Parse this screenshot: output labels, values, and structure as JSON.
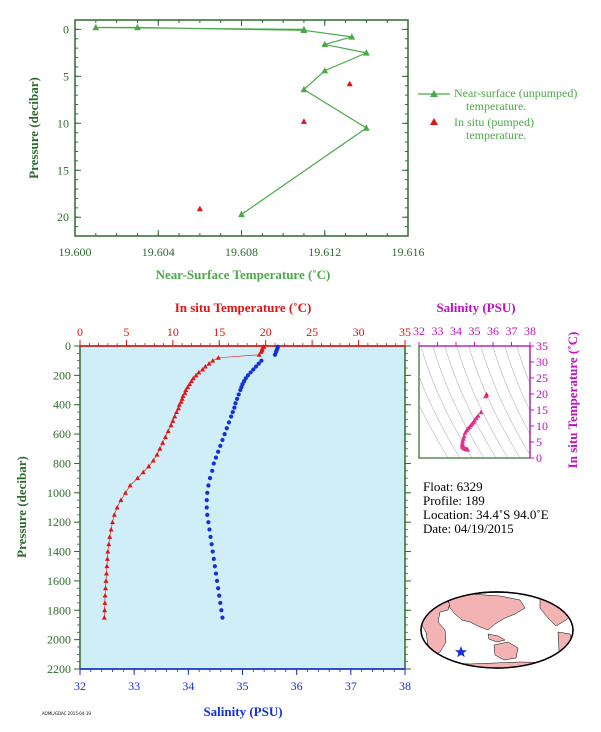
{
  "colors": {
    "green": "#4aaa4a",
    "axis_green": "#2f6b2f",
    "red": "#e01414",
    "blue": "#1530d8",
    "magenta": "#c010c0",
    "panel_bg": "#cfeef8",
    "land": "#f4b3b3"
  },
  "top_chart": {
    "type": "line",
    "ylabel": "Pressure (decibar)",
    "xlabel": "Near-Surface Temperature (˚C)",
    "xlim": [
      19.6,
      19.616
    ],
    "ylim": [
      22,
      -1
    ],
    "x_ticks": [
      "19.600",
      "19.604",
      "19.608",
      "19.612",
      "19.616"
    ],
    "y_ticks": [
      "0",
      "5",
      "10",
      "15",
      "20"
    ],
    "legend": {
      "line_label_1": "Near-surface (unpumped)",
      "line_label_2": "temperature.",
      "marker_label_1": "In situ (pumped)",
      "marker_label_2": "temperature."
    }
  },
  "main_chart": {
    "top_axis_label": "In situ Temperature (˚C)",
    "bottom_axis_label": "Salinity (PSU)",
    "ylabel": "Pressure (decibar)",
    "temp_ticks": [
      "0",
      "5",
      "10",
      "15",
      "20",
      "25",
      "30",
      "35"
    ],
    "sal_ticks": [
      "32",
      "33",
      "34",
      "35",
      "36",
      "37",
      "38"
    ],
    "p_ticks": [
      "0",
      "200",
      "400",
      "600",
      "800",
      "1000",
      "1200",
      "1400",
      "1600",
      "1800",
      "2000",
      "2200"
    ],
    "footer_code": "AOML/GDAC 2015-04-19"
  },
  "ts_chart": {
    "title": "Salinity (PSU)",
    "ylabel": "In situ Temperature (˚C)",
    "sal_ticks": [
      "32",
      "33",
      "34",
      "35",
      "36",
      "37",
      "38"
    ],
    "t_ticks": [
      "0",
      "5",
      "10",
      "15",
      "20",
      "25",
      "30",
      "35"
    ]
  },
  "info": {
    "float_line": "Float:  6329",
    "profile_line": "Profile:  189",
    "location_line": "Location:  34.4˚S  94.0˚E",
    "date_line": "Date:  04/19/2015"
  },
  "chart_data": [
    {
      "type": "line",
      "title": "",
      "xlabel": "Near-Surface Temperature (˚C)",
      "ylabel": "Pressure (decibar)",
      "xlim": [
        19.6,
        19.616
      ],
      "ylim": [
        22,
        -1
      ],
      "series": [
        {
          "name": "Near-surface (unpumped) temperature.",
          "points": [
            [
              19.611,
              0.0
            ],
            [
              19.601,
              -0.2
            ],
            [
              19.603,
              -0.2
            ],
            [
              19.611,
              0.1
            ],
            [
              19.6133,
              0.8
            ],
            [
              19.612,
              1.6
            ],
            [
              19.614,
              2.5
            ],
            [
              19.612,
              4.4
            ],
            [
              19.611,
              6.4
            ],
            [
              19.614,
              10.5
            ],
            [
              19.608,
              19.7
            ]
          ]
        },
        {
          "name": "In situ (pumped) temperature.",
          "points": [
            [
              19.6132,
              5.8
            ],
            [
              19.611,
              9.8
            ],
            [
              19.606,
              19.1
            ]
          ]
        }
      ]
    },
    {
      "type": "scatter",
      "title": "",
      "xlabel": "In situ Temperature (˚C)",
      "ylabel": "Pressure (decibar)",
      "xlim": [
        0,
        35
      ],
      "ylim": [
        2200,
        0
      ],
      "series": [
        {
          "name": "In situ Temperature (˚C)",
          "points": [
            [
              19.8,
              5
            ],
            [
              19.7,
              10
            ],
            [
              19.6,
              20
            ],
            [
              19.6,
              30
            ],
            [
              19.5,
              40
            ],
            [
              19.3,
              60
            ],
            [
              14.9,
              80
            ],
            [
              14.3,
              100
            ],
            [
              13.9,
              120
            ],
            [
              13.5,
              140
            ],
            [
              13.2,
              160
            ],
            [
              12.8,
              180
            ],
            [
              12.5,
              200
            ],
            [
              12.2,
              220
            ],
            [
              12.0,
              240
            ],
            [
              11.8,
              260
            ],
            [
              11.6,
              280
            ],
            [
              11.4,
              300
            ],
            [
              11.3,
              320
            ],
            [
              11.1,
              340
            ],
            [
              11.0,
              360
            ],
            [
              10.9,
              380
            ],
            [
              10.7,
              400
            ],
            [
              10.6,
              425
            ],
            [
              10.4,
              450
            ],
            [
              10.2,
              480
            ],
            [
              10.0,
              510
            ],
            [
              9.8,
              540
            ],
            [
              9.5,
              580
            ],
            [
              9.2,
              620
            ],
            [
              8.9,
              660
            ],
            [
              8.6,
              700
            ],
            [
              8.3,
              740
            ],
            [
              7.9,
              780
            ],
            [
              7.4,
              820
            ],
            [
              6.8,
              860
            ],
            [
              6.2,
              900
            ],
            [
              5.4,
              950
            ],
            [
              4.9,
              1000
            ],
            [
              4.4,
              1050
            ],
            [
              4.0,
              1100
            ],
            [
              3.7,
              1150
            ],
            [
              3.5,
              1200
            ],
            [
              3.35,
              1250
            ],
            [
              3.2,
              1300
            ],
            [
              3.1,
              1350
            ],
            [
              3.0,
              1400
            ],
            [
              2.95,
              1450
            ],
            [
              2.9,
              1500
            ],
            [
              2.85,
              1550
            ],
            [
              2.8,
              1600
            ],
            [
              2.75,
              1650
            ],
            [
              2.7,
              1700
            ],
            [
              2.68,
              1750
            ],
            [
              2.65,
              1800
            ],
            [
              2.62,
              1850
            ]
          ]
        },
        {
          "name": "Salinity (PSU)",
          "points": [
            [
              35.65,
              5
            ],
            [
              35.65,
              10
            ],
            [
              35.64,
              20
            ],
            [
              35.63,
              30
            ],
            [
              35.62,
              40
            ],
            [
              35.6,
              60
            ],
            [
              35.35,
              100
            ],
            [
              35.3,
              120
            ],
            [
              35.25,
              140
            ],
            [
              35.2,
              160
            ],
            [
              35.15,
              180
            ],
            [
              35.1,
              200
            ],
            [
              35.06,
              220
            ],
            [
              35.03,
              240
            ],
            [
              35.0,
              260
            ],
            [
              34.98,
              280
            ],
            [
              34.96,
              300
            ],
            [
              34.93,
              330
            ],
            [
              34.9,
              360
            ],
            [
              34.87,
              390
            ],
            [
              34.85,
              420
            ],
            [
              34.82,
              450
            ],
            [
              34.79,
              480
            ],
            [
              34.75,
              520
            ],
            [
              34.71,
              560
            ],
            [
              34.67,
              600
            ],
            [
              34.63,
              640
            ],
            [
              34.59,
              680
            ],
            [
              34.55,
              720
            ],
            [
              34.51,
              760
            ],
            [
              34.47,
              800
            ],
            [
              34.44,
              850
            ],
            [
              34.4,
              900
            ],
            [
              34.37,
              950
            ],
            [
              34.35,
              1000
            ],
            [
              34.34,
              1050
            ],
            [
              34.34,
              1100
            ],
            [
              34.35,
              1150
            ],
            [
              34.37,
              1200
            ],
            [
              34.39,
              1250
            ],
            [
              34.41,
              1300
            ],
            [
              34.43,
              1350
            ],
            [
              34.45,
              1400
            ],
            [
              34.47,
              1450
            ],
            [
              34.49,
              1500
            ],
            [
              34.51,
              1550
            ],
            [
              34.53,
              1600
            ],
            [
              34.55,
              1650
            ],
            [
              34.57,
              1700
            ],
            [
              34.59,
              1750
            ],
            [
              34.61,
              1800
            ],
            [
              34.63,
              1850
            ]
          ]
        }
      ]
    },
    {
      "type": "scatter",
      "title": "Salinity (PSU)",
      "xlabel": "Salinity (PSU)",
      "ylabel": "In situ Temperature (˚C)",
      "xlim": [
        32,
        38
      ],
      "ylim": [
        0,
        35
      ],
      "series": [
        {
          "name": "",
          "points": [
            [
              35.65,
              19.8
            ],
            [
              35.6,
              19.3
            ],
            [
              35.35,
              14.3
            ],
            [
              35.2,
              13.2
            ],
            [
              35.1,
              12.5
            ],
            [
              35.0,
              11.8
            ],
            [
              34.95,
              11.1
            ],
            [
              34.87,
              10.7
            ],
            [
              34.8,
              10.2
            ],
            [
              34.73,
              9.7
            ],
            [
              34.65,
              9.2
            ],
            [
              34.57,
              8.6
            ],
            [
              34.5,
              7.9
            ],
            [
              34.44,
              6.8
            ],
            [
              34.4,
              6.0
            ],
            [
              34.36,
              5.2
            ],
            [
              34.34,
              4.4
            ],
            [
              34.34,
              3.9
            ],
            [
              34.36,
              3.5
            ],
            [
              34.4,
              3.2
            ],
            [
              34.45,
              3.0
            ],
            [
              34.5,
              2.9
            ],
            [
              34.55,
              2.8
            ],
            [
              34.6,
              2.7
            ],
            [
              34.63,
              2.62
            ]
          ]
        }
      ]
    }
  ]
}
